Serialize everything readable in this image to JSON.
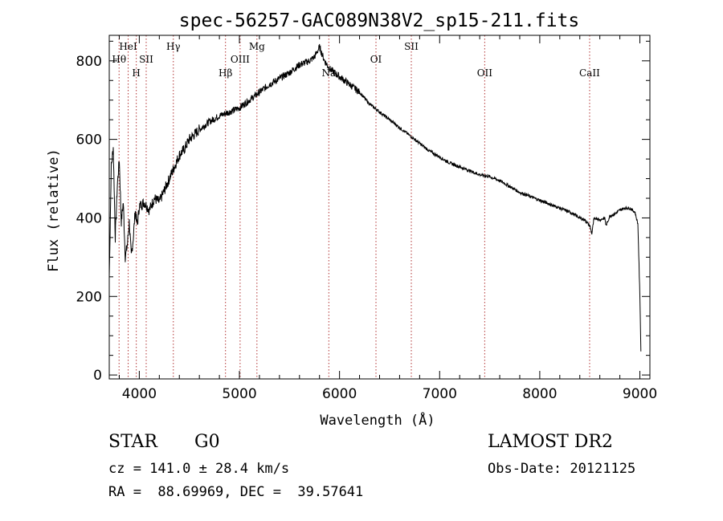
{
  "chart_data": {
    "type": "line",
    "title": "spec-56257-GAC089N38V2_sp15-211.fits",
    "xlabel": "Wavelength (Å)",
    "ylabel": "Flux (relative)",
    "xlim": [
      3700,
      9100
    ],
    "ylim": [
      -10,
      865
    ],
    "xticks": [
      4000,
      5000,
      6000,
      7000,
      8000,
      9000
    ],
    "yticks": [
      0,
      200,
      400,
      600,
      800
    ],
    "grid": false,
    "line_color": "#000000",
    "marker_color": "#b03030",
    "spectral_lines": [
      {
        "label": "Hθ",
        "wavelength": 3798,
        "row": 2
      },
      {
        "label": "HeI",
        "wavelength": 3889,
        "row": 1
      },
      {
        "label": "H",
        "wavelength": 3970,
        "row": 3
      },
      {
        "label": "SII",
        "wavelength": 4069,
        "row": 2
      },
      {
        "label": "Hγ",
        "wavelength": 4340,
        "row": 1
      },
      {
        "label": "Hβ",
        "wavelength": 4861,
        "row": 3
      },
      {
        "label": "OIII",
        "wavelength": 5007,
        "row": 2
      },
      {
        "label": "Mg",
        "wavelength": 5175,
        "row": 1
      },
      {
        "label": "Na",
        "wavelength": 5893,
        "row": 3
      },
      {
        "label": "OI",
        "wavelength": 6364,
        "row": 2
      },
      {
        "label": "SII",
        "wavelength": 6717,
        "row": 1
      },
      {
        "label": "OII",
        "wavelength": 7450,
        "row": 3
      },
      {
        "label": "CaII",
        "wavelength": 8498,
        "row": 3
      }
    ],
    "series": [
      {
        "x": [
          3700,
          3720,
          3740,
          3760,
          3780,
          3800,
          3820,
          3840,
          3860,
          3880,
          3900,
          3920,
          3940,
          3960,
          3980,
          4000,
          4050,
          4100,
          4150,
          4200,
          4250,
          4300,
          4350,
          4400,
          4450,
          4500,
          4600,
          4700,
          4800,
          4900,
          5000,
          5100,
          5200,
          5300,
          5400,
          5500,
          5600,
          5700,
          5750,
          5800,
          5850,
          5900,
          5950,
          6000,
          6100,
          6200,
          6300,
          6400,
          6500,
          6600,
          6700,
          6800,
          6900,
          7000,
          7100,
          7200,
          7300,
          7400,
          7500,
          7600,
          7700,
          7800,
          7900,
          8000,
          8100,
          8200,
          8300,
          8400,
          8450,
          8500,
          8520,
          8540,
          8560,
          8600,
          8650,
          8662,
          8700,
          8750,
          8800,
          8850,
          8900,
          8950,
          8980,
          9000,
          9010
        ],
        "y": [
          250,
          530,
          580,
          350,
          480,
          550,
          390,
          440,
          300,
          330,
          390,
          300,
          350,
          420,
          380,
          430,
          440,
          420,
          450,
          440,
          470,
          500,
          530,
          560,
          575,
          600,
          625,
          645,
          660,
          670,
          680,
          700,
          720,
          740,
          755,
          770,
          790,
          800,
          810,
          835,
          800,
          780,
          770,
          760,
          740,
          720,
          690,
          670,
          650,
          630,
          610,
          590,
          570,
          555,
          540,
          530,
          520,
          510,
          505,
          495,
          480,
          465,
          455,
          445,
          435,
          425,
          415,
          400,
          395,
          380,
          360,
          395,
          400,
          395,
          400,
          380,
          405,
          410,
          420,
          425,
          425,
          415,
          385,
          200,
          60
        ]
      }
    ]
  },
  "footer": {
    "object_class": "STAR",
    "subclass": "G0",
    "survey": "LAMOST DR2",
    "redshift": "cz = 141.0 ± 28.4 km/s",
    "obs_date": "Obs-Date: 20121125",
    "radec": "RA =  88.69969, DEC =  39.57641"
  }
}
